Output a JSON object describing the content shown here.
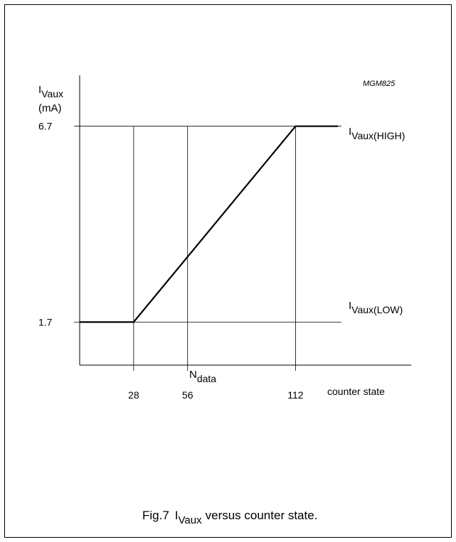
{
  "chart_data": {
    "type": "line",
    "figure_code": "MGM825",
    "caption": {
      "prefix": "Fig.7",
      "symbol_main": "I",
      "symbol_sub": "Vaux",
      "text": "versus counter state."
    },
    "y_axis": {
      "symbol_main": "I",
      "symbol_sub": "Vaux",
      "unit": "(mA)",
      "ticks": [
        "6.7",
        "1.7"
      ],
      "tick_values": [
        6.7,
        1.7
      ],
      "range": [
        0.6,
        8.0
      ]
    },
    "x_axis": {
      "label": "counter state",
      "ticks": [
        "28",
        "56",
        "112"
      ],
      "tick_values": [
        28,
        56,
        112
      ],
      "range": [
        0,
        172
      ]
    },
    "annotations": [
      {
        "id": "high",
        "main": "I",
        "sub": "Vaux(HIGH)",
        "y": 6.7
      },
      {
        "id": "low",
        "main": "I",
        "sub": "Vaux(LOW)",
        "y": 1.7
      },
      {
        "id": "ndata",
        "main": "N",
        "sub": "data",
        "x": 56
      }
    ],
    "series": [
      {
        "x": [
          0,
          28,
          112,
          134
        ],
        "y": [
          1.7,
          1.7,
          6.7,
          6.7
        ]
      }
    ],
    "reference_lines": {
      "horizontal": [
        6.7,
        1.7
      ],
      "vertical": [
        28,
        56,
        112
      ]
    }
  }
}
